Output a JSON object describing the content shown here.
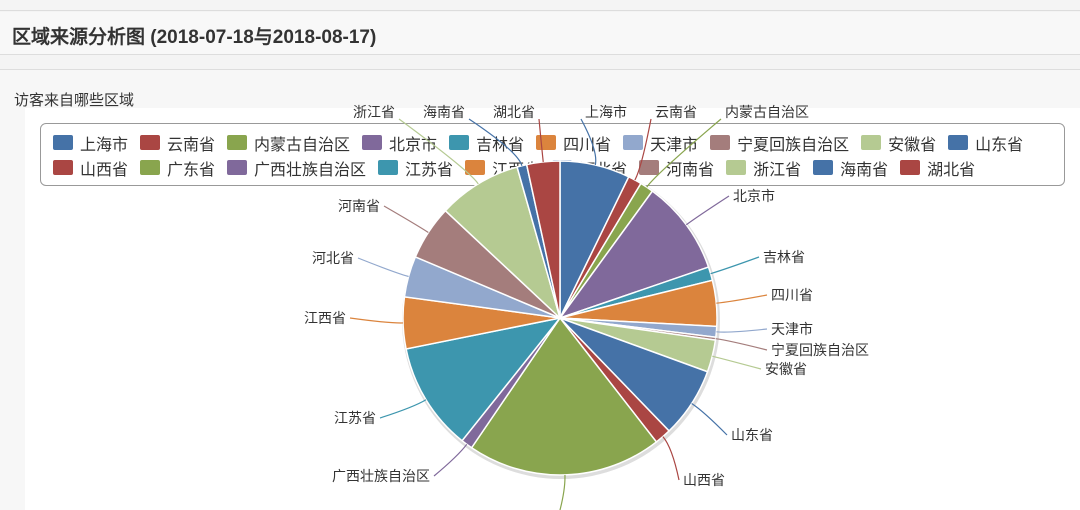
{
  "header": {
    "title": "区域来源分析图 (2018-07-18与2018-08-17)"
  },
  "panel": {
    "subtitle": "访客来自哪些区域"
  },
  "chart_data": {
    "type": "pie",
    "title": "",
    "legend": "top",
    "categories": [
      "上海市",
      "云南省",
      "内蒙古自治区",
      "北京市",
      "吉林省",
      "四川省",
      "天津市",
      "宁夏回族自治区",
      "安徽省",
      "山东省",
      "山西省",
      "广东省",
      "广西壮族自治区",
      "江苏省",
      "江西省",
      "河北省",
      "河南省",
      "浙江省",
      "海南省",
      "湖北省"
    ],
    "values": [
      7.2,
      1.4,
      1.4,
      9.7,
      1.4,
      4.7,
      1.1,
      0.3,
      3.3,
      7.2,
      1.7,
      20.0,
      1.2,
      11.1,
      5.3,
      4.2,
      5.6,
      8.6,
      1.0,
      3.4
    ],
    "colors": [
      "#4572A7",
      "#AA4643",
      "#89A54E",
      "#80699B",
      "#3D96AE",
      "#DB843D",
      "#92A8CD",
      "#A47D7C",
      "#B5CA92",
      "#4572A7",
      "#AA4643",
      "#89A54E",
      "#80699B",
      "#3D96AE",
      "#DB843D",
      "#92A8CD",
      "#A47D7C",
      "#B5CA92",
      "#4572A7",
      "#AA4643"
    ]
  }
}
